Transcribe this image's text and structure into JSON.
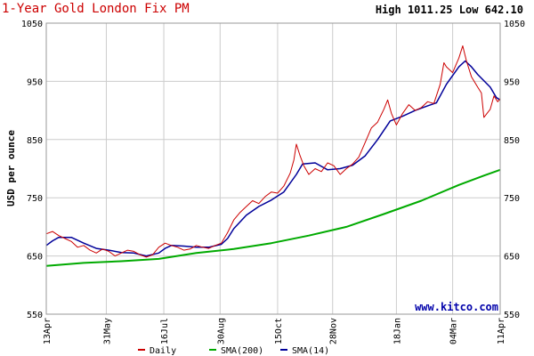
{
  "header": {
    "title": "1-Year Gold London Fix PM",
    "high_low": "High 1011.25 Low 642.10"
  },
  "watermark": "www.kitco.com",
  "colors": {
    "daily": "#cc0000",
    "sma200": "#00aa00",
    "sma14": "#000099",
    "grid": "#cccccc",
    "border": "#999999"
  },
  "chart_data": {
    "type": "line",
    "title": "1-Year Gold London Fix PM",
    "ylabel": "USD per ounce",
    "ylim": [
      550,
      1050
    ],
    "yticks": [
      550,
      650,
      750,
      850,
      950,
      1050
    ],
    "xtick_labels": [
      "13Apr",
      "31May",
      "16Jul",
      "30Aug",
      "15Oct",
      "28Nov",
      "18Jan",
      "04Mar",
      "11Apr"
    ],
    "xtick_days": [
      0,
      48,
      94,
      139,
      185,
      229,
      280,
      325,
      363
    ],
    "x_unit": "days from 13Apr",
    "legend_position": "bottom",
    "grid": true,
    "series": [
      {
        "name": "Daily",
        "points": [
          [
            0,
            688
          ],
          [
            5,
            692
          ],
          [
            10,
            685
          ],
          [
            15,
            680
          ],
          [
            20,
            675
          ],
          [
            25,
            665
          ],
          [
            30,
            668
          ],
          [
            35,
            660
          ],
          [
            40,
            655
          ],
          [
            45,
            662
          ],
          [
            50,
            658
          ],
          [
            55,
            650
          ],
          [
            60,
            655
          ],
          [
            65,
            660
          ],
          [
            70,
            658
          ],
          [
            75,
            652
          ],
          [
            80,
            648
          ],
          [
            85,
            652
          ],
          [
            90,
            665
          ],
          [
            95,
            672
          ],
          [
            100,
            668
          ],
          [
            105,
            665
          ],
          [
            110,
            660
          ],
          [
            115,
            662
          ],
          [
            120,
            668
          ],
          [
            125,
            665
          ],
          [
            130,
            663
          ],
          [
            135,
            668
          ],
          [
            140,
            672
          ],
          [
            145,
            690
          ],
          [
            150,
            712
          ],
          [
            155,
            725
          ],
          [
            160,
            735
          ],
          [
            165,
            745
          ],
          [
            170,
            740
          ],
          [
            175,
            752
          ],
          [
            180,
            760
          ],
          [
            185,
            758
          ],
          [
            190,
            770
          ],
          [
            195,
            792
          ],
          [
            198,
            815
          ],
          [
            200,
            842
          ],
          [
            203,
            822
          ],
          [
            206,
            805
          ],
          [
            210,
            790
          ],
          [
            215,
            800
          ],
          [
            220,
            795
          ],
          [
            225,
            810
          ],
          [
            230,
            805
          ],
          [
            235,
            790
          ],
          [
            240,
            800
          ],
          [
            245,
            808
          ],
          [
            250,
            820
          ],
          [
            255,
            845
          ],
          [
            260,
            870
          ],
          [
            265,
            880
          ],
          [
            270,
            902
          ],
          [
            273,
            918
          ],
          [
            276,
            895
          ],
          [
            280,
            875
          ],
          [
            285,
            895
          ],
          [
            290,
            910
          ],
          [
            295,
            900
          ],
          [
            300,
            905
          ],
          [
            305,
            915
          ],
          [
            310,
            912
          ],
          [
            315,
            945
          ],
          [
            318,
            982
          ],
          [
            320,
            975
          ],
          [
            325,
            965
          ],
          [
            330,
            990
          ],
          [
            333,
            1011
          ],
          [
            336,
            985
          ],
          [
            340,
            958
          ],
          [
            345,
            940
          ],
          [
            348,
            930
          ],
          [
            350,
            888
          ],
          [
            355,
            902
          ],
          [
            358,
            925
          ],
          [
            361,
            915
          ],
          [
            363,
            920
          ]
        ]
      },
      {
        "name": "SMA(200)",
        "points": [
          [
            0,
            633
          ],
          [
            30,
            638
          ],
          [
            60,
            641
          ],
          [
            90,
            645
          ],
          [
            120,
            655
          ],
          [
            150,
            662
          ],
          [
            180,
            672
          ],
          [
            210,
            685
          ],
          [
            240,
            700
          ],
          [
            270,
            722
          ],
          [
            300,
            745
          ],
          [
            330,
            772
          ],
          [
            350,
            788
          ],
          [
            363,
            798
          ]
        ]
      },
      {
        "name": "SMA(14)",
        "points": [
          [
            0,
            668
          ],
          [
            5,
            676
          ],
          [
            10,
            682
          ],
          [
            20,
            682
          ],
          [
            30,
            672
          ],
          [
            40,
            663
          ],
          [
            50,
            660
          ],
          [
            60,
            656
          ],
          [
            70,
            655
          ],
          [
            80,
            650
          ],
          [
            90,
            655
          ],
          [
            95,
            663
          ],
          [
            100,
            668
          ],
          [
            110,
            667
          ],
          [
            120,
            665
          ],
          [
            130,
            665
          ],
          [
            140,
            670
          ],
          [
            145,
            680
          ],
          [
            150,
            697
          ],
          [
            160,
            720
          ],
          [
            170,
            735
          ],
          [
            180,
            746
          ],
          [
            190,
            760
          ],
          [
            200,
            790
          ],
          [
            205,
            808
          ],
          [
            215,
            810
          ],
          [
            225,
            798
          ],
          [
            235,
            800
          ],
          [
            245,
            806
          ],
          [
            255,
            822
          ],
          [
            265,
            850
          ],
          [
            275,
            882
          ],
          [
            285,
            890
          ],
          [
            295,
            900
          ],
          [
            305,
            908
          ],
          [
            312,
            913
          ],
          [
            320,
            945
          ],
          [
            330,
            975
          ],
          [
            335,
            985
          ],
          [
            340,
            975
          ],
          [
            345,
            962
          ],
          [
            355,
            940
          ],
          [
            360,
            922
          ],
          [
            363,
            918
          ]
        ]
      }
    ]
  }
}
